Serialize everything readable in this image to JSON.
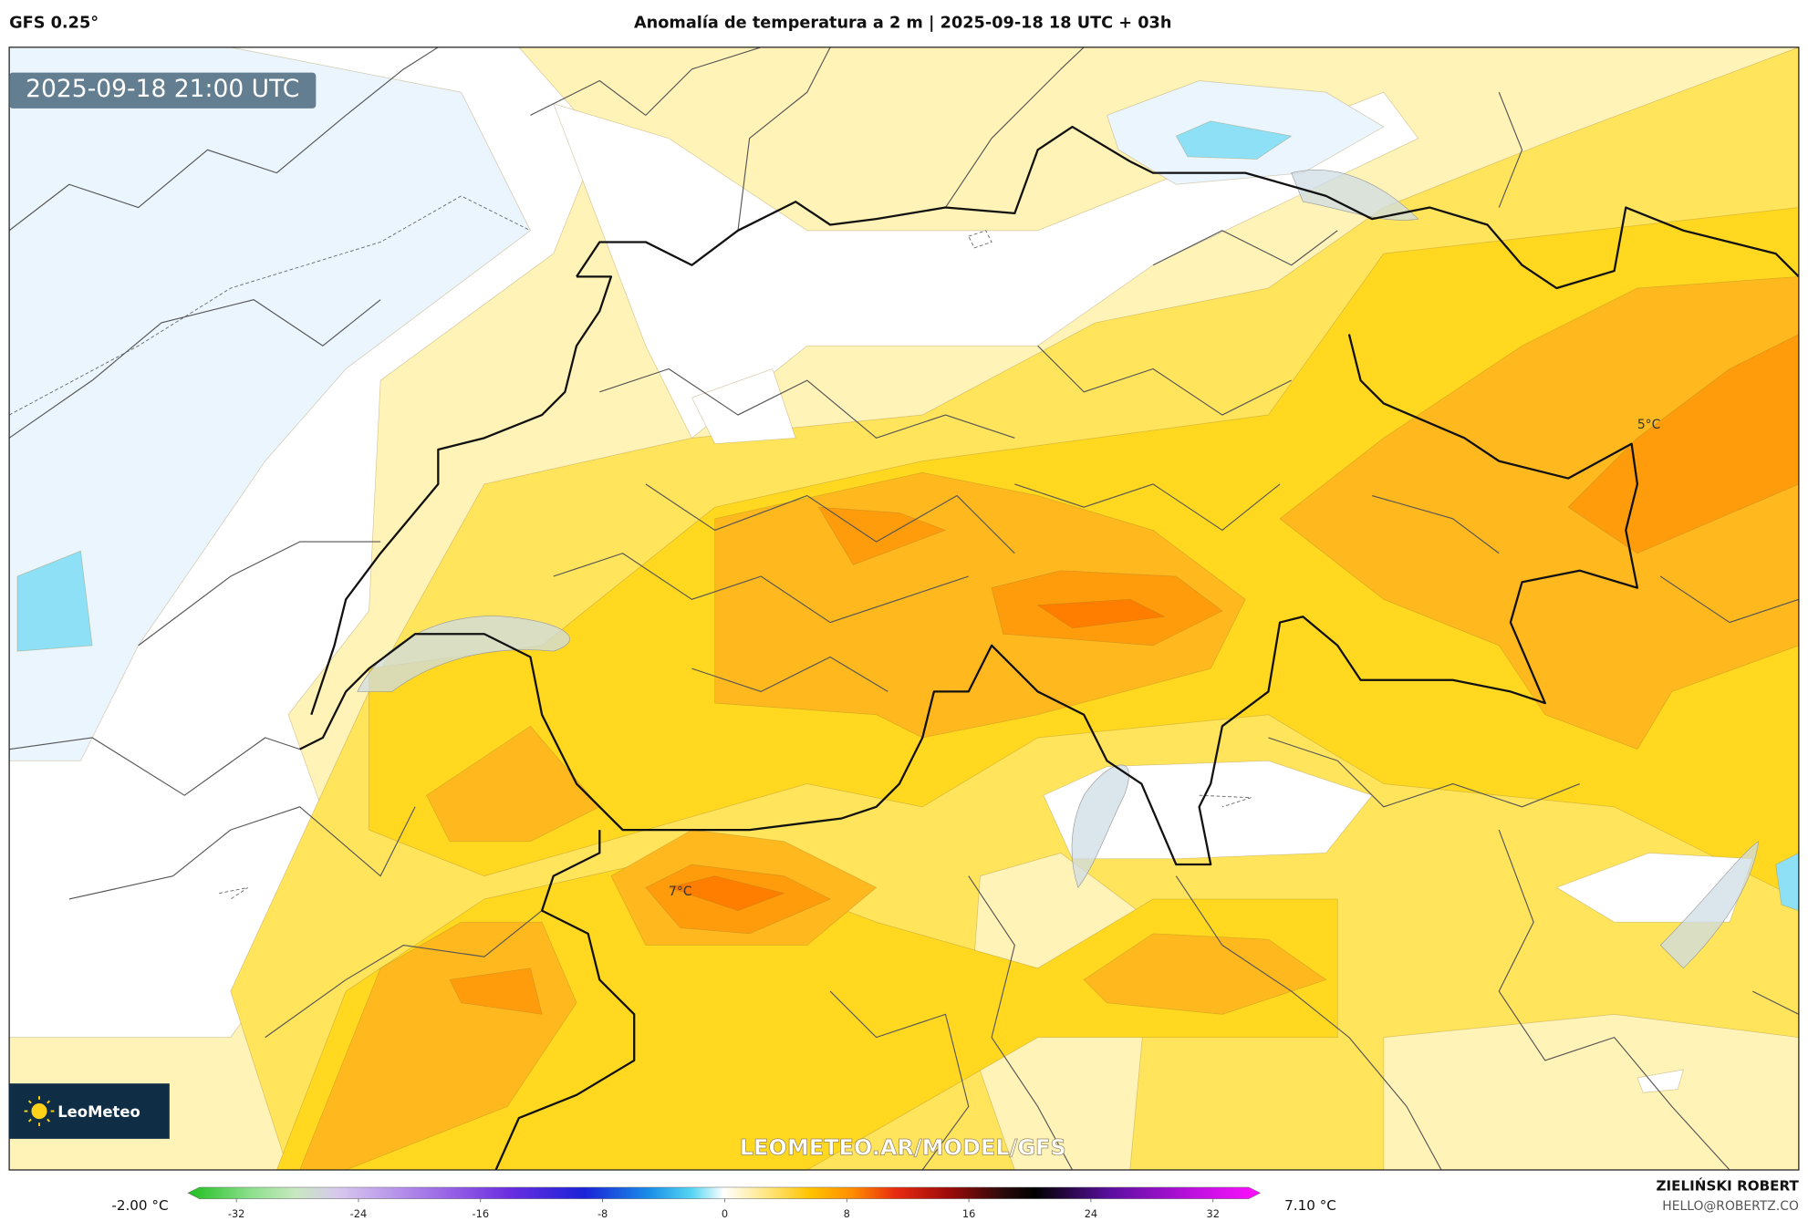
{
  "header": {
    "model": "GFS 0.25°",
    "title": "Anomalía de temperatura a 2 m | 2025-09-18 18 UTC + 03h"
  },
  "map": {
    "timestamp": "2025-09-18 21:00 UTC",
    "labels": [
      "5°C",
      "7°C"
    ],
    "watermark": "LEOMETEO.AR/MODEL/GFS",
    "logo": "LeoMeteo"
  },
  "colorbar": {
    "min_label": "-2.00 °C",
    "max_label": "7.10 °C",
    "ticks": [
      -32,
      -24,
      -16,
      -8,
      0,
      8,
      16,
      24,
      32
    ]
  },
  "credits": {
    "name": "ZIELIŃSKI ROBERT",
    "email": "HELLO@ROBERTZ.CO"
  }
}
